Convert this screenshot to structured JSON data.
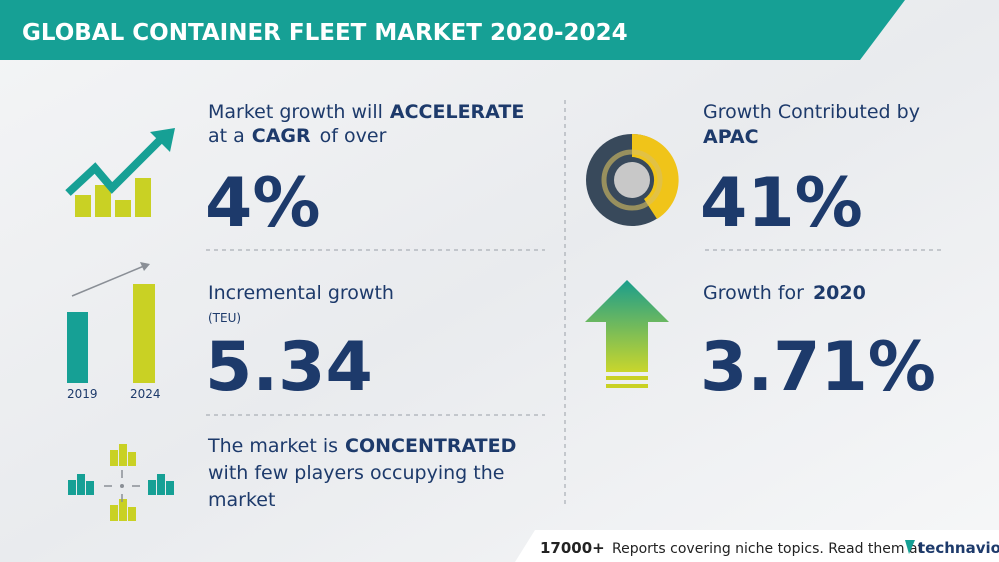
{
  "header": {
    "title": "GLOBAL CONTAINER FLEET MARKET 2020-2024"
  },
  "growth": {
    "line1": "Market growth will",
    "line1_bold": "ACCELERATE",
    "line2_a": "at a",
    "line2_bold": "CAGR",
    "line2_b": "of over",
    "value": "4%"
  },
  "incremental": {
    "label": "Incremental growth",
    "unit": "(TEU)",
    "value": "5.34",
    "year_start": "2019",
    "year_end": "2024"
  },
  "concentration": {
    "line1": "The market is",
    "line1_bold": "CONCENTRATED",
    "line2": "with few players occupying the",
    "line3": "market"
  },
  "region": {
    "label": "Growth Contributed by",
    "region": "APAC",
    "value": "41%"
  },
  "yearly": {
    "label": "Growth for",
    "year": "2020",
    "value": "3.71%"
  },
  "footer": {
    "count": "17000+",
    "text": "Reports covering niche topics. Read them at",
    "brand": "technavio"
  }
}
